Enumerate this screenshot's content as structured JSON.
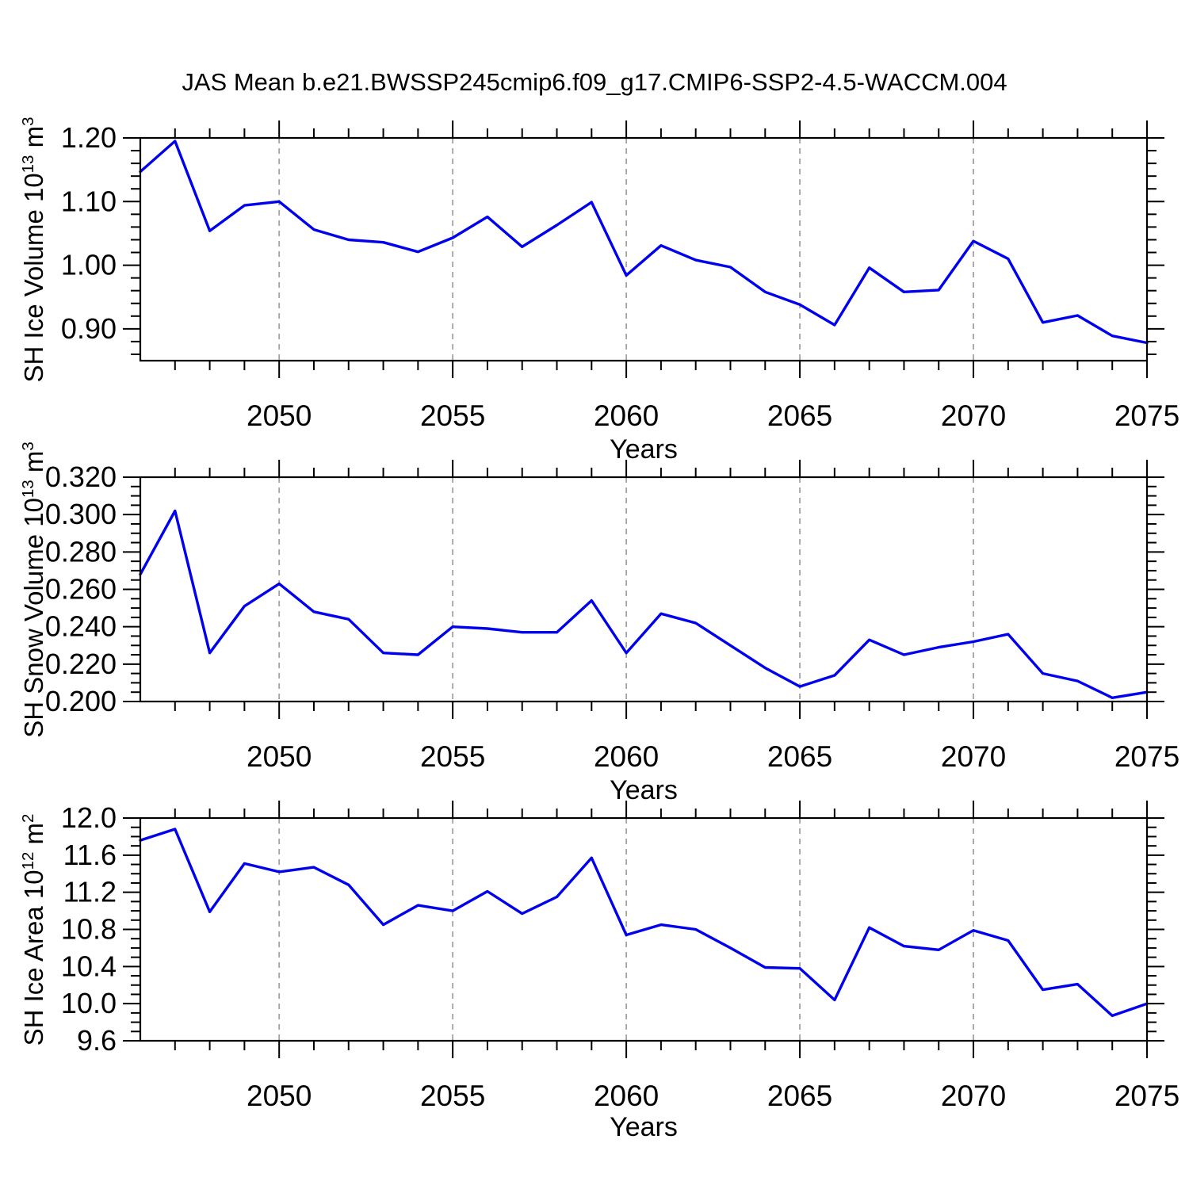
{
  "title": "JAS Mean b.e21.BWSSP245cmip6.f09_g17.CMIP6-SSP2-4.5-WACCM.004",
  "colors": {
    "line": "#0000ee",
    "grid": "#a3a3a3",
    "axis": "#000000"
  },
  "x_axis": {
    "label": "Years",
    "min": 2046,
    "max": 2075,
    "major_ticks": [
      2050,
      2055,
      2060,
      2065,
      2070,
      2075
    ],
    "major_tick_labels": [
      "2050",
      "2055",
      "2060",
      "2065",
      "2070",
      "2075"
    ],
    "gridline_years": [
      2050,
      2055,
      2060,
      2065,
      2070
    ],
    "minor_tick_step_years": 1
  },
  "chart_data": [
    {
      "type": "line",
      "name": "sh-ice-volume",
      "ylabel": {
        "base": "SH Ice Volume 10",
        "exp": "13",
        "unit": " m",
        "unit_exp": "3"
      },
      "ylim": [
        0.85,
        1.2
      ],
      "y_major_ticks": [
        {
          "value": 1.2,
          "label": "1.20"
        },
        {
          "value": 1.1,
          "label": "1.10"
        },
        {
          "value": 1.0,
          "label": "1.00"
        },
        {
          "value": 0.9,
          "label": "0.90"
        }
      ],
      "y_minor_step": 0.02,
      "x": [
        2046,
        2047,
        2048,
        2049,
        2050,
        2051,
        2052,
        2053,
        2054,
        2055,
        2056,
        2057,
        2058,
        2059,
        2060,
        2061,
        2062,
        2063,
        2064,
        2065,
        2066,
        2067,
        2068,
        2069,
        2070,
        2071,
        2072,
        2073,
        2074,
        2075
      ],
      "values": [
        1.147,
        1.195,
        1.054,
        1.094,
        1.1,
        1.056,
        1.04,
        1.036,
        1.021,
        1.043,
        1.076,
        1.029,
        1.063,
        1.099,
        0.984,
        1.031,
        1.008,
        0.997,
        0.958,
        0.938,
        0.906,
        0.996,
        0.958,
        0.961,
        1.038,
        1.01,
        0.91,
        0.921,
        0.889,
        0.878
      ]
    },
    {
      "type": "line",
      "name": "sh-snow-volume",
      "ylabel": {
        "base": "SH Snow Volume 10",
        "exp": "13",
        "unit": " m",
        "unit_exp": "3"
      },
      "ylim": [
        0.2,
        0.32
      ],
      "y_major_ticks": [
        {
          "value": 0.32,
          "label": "0.320"
        },
        {
          "value": 0.3,
          "label": "0.300"
        },
        {
          "value": 0.28,
          "label": "0.280"
        },
        {
          "value": 0.26,
          "label": "0.260"
        },
        {
          "value": 0.24,
          "label": "0.240"
        },
        {
          "value": 0.22,
          "label": "0.220"
        },
        {
          "value": 0.2,
          "label": "0.200"
        }
      ],
      "y_minor_step": 0.005,
      "x": [
        2046,
        2047,
        2048,
        2049,
        2050,
        2051,
        2052,
        2053,
        2054,
        2055,
        2056,
        2057,
        2058,
        2059,
        2060,
        2061,
        2062,
        2063,
        2064,
        2065,
        2066,
        2067,
        2068,
        2069,
        2070,
        2071,
        2072,
        2073,
        2074,
        2075
      ],
      "values": [
        0.268,
        0.302,
        0.226,
        0.251,
        0.263,
        0.248,
        0.244,
        0.226,
        0.225,
        0.24,
        0.239,
        0.237,
        0.237,
        0.254,
        0.226,
        0.247,
        0.242,
        0.23,
        0.218,
        0.208,
        0.214,
        0.233,
        0.225,
        0.229,
        0.232,
        0.236,
        0.215,
        0.211,
        0.202,
        0.205
      ]
    },
    {
      "type": "line",
      "name": "sh-ice-area",
      "ylabel": {
        "base": "SH Ice Area 10",
        "exp": "12",
        "unit": " m",
        "unit_exp": "2"
      },
      "ylim": [
        9.6,
        12.0
      ],
      "y_major_ticks": [
        {
          "value": 12.0,
          "label": "12.0"
        },
        {
          "value": 11.6,
          "label": "11.6"
        },
        {
          "value": 11.2,
          "label": "11.2"
        },
        {
          "value": 10.8,
          "label": "10.8"
        },
        {
          "value": 10.4,
          "label": "10.4"
        },
        {
          "value": 10.0,
          "label": "10.0"
        },
        {
          "value": 9.6,
          "label": "9.6"
        }
      ],
      "y_minor_step": 0.1,
      "x": [
        2046,
        2047,
        2048,
        2049,
        2050,
        2051,
        2052,
        2053,
        2054,
        2055,
        2056,
        2057,
        2058,
        2059,
        2060,
        2061,
        2062,
        2063,
        2064,
        2065,
        2066,
        2067,
        2068,
        2069,
        2070,
        2071,
        2072,
        2073,
        2074,
        2075
      ],
      "values": [
        11.76,
        11.88,
        10.99,
        11.51,
        11.42,
        11.47,
        11.28,
        10.85,
        11.06,
        11.0,
        11.21,
        10.97,
        11.15,
        11.57,
        10.74,
        10.85,
        10.8,
        10.6,
        10.39,
        10.38,
        10.04,
        10.82,
        10.62,
        10.58,
        10.79,
        10.68,
        10.15,
        10.21,
        9.87,
        10.0
      ]
    }
  ]
}
